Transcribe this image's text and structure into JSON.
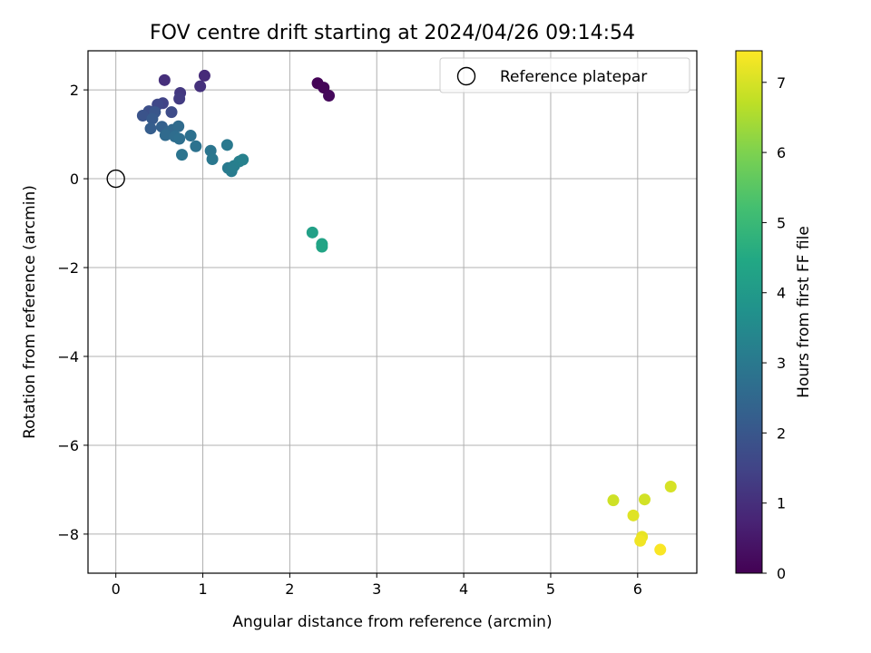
{
  "chart_data": {
    "type": "scatter",
    "title": "FOV centre drift starting at 2024/04/26 09:14:54",
    "xlabel": "Angular distance from reference (arcmin)",
    "ylabel": "Rotation from reference (arcmin)",
    "xlim": [
      -0.32,
      6.68
    ],
    "ylim": [
      -8.88,
      2.88
    ],
    "xticks": [
      0,
      1,
      2,
      3,
      4,
      5,
      6
    ],
    "yticks": [
      -8,
      -6,
      -4,
      -2,
      0,
      2
    ],
    "xtick_labels": [
      "0",
      "1",
      "2",
      "3",
      "4",
      "5",
      "6"
    ],
    "ytick_labels": [
      "−8",
      "−6",
      "−4",
      "−2",
      "0",
      "2"
    ],
    "grid": true,
    "legend": {
      "position": "top-right",
      "entries": [
        {
          "label": "Reference platepar",
          "marker": "open-circle"
        }
      ]
    },
    "reference_point": {
      "x": 0,
      "y": 0
    },
    "colorbar": {
      "label": "Hours from first FF file",
      "range": [
        0,
        7.45
      ],
      "ticks": [
        0,
        1,
        2,
        3,
        4,
        5,
        6,
        7
      ],
      "tick_labels": [
        "0",
        "1",
        "2",
        "3",
        "4",
        "5",
        "6",
        "7"
      ],
      "colormap": "viridis"
    },
    "points": [
      {
        "x": 2.32,
        "y": 2.15,
        "c": 0.05
      },
      {
        "x": 2.39,
        "y": 2.05,
        "c": 0.1
      },
      {
        "x": 2.45,
        "y": 1.87,
        "c": 0.15
      },
      {
        "x": 1.02,
        "y": 2.32,
        "c": 0.9
      },
      {
        "x": 0.56,
        "y": 2.22,
        "c": 1.0
      },
      {
        "x": 0.97,
        "y": 2.08,
        "c": 1.05
      },
      {
        "x": 0.74,
        "y": 1.93,
        "c": 1.2
      },
      {
        "x": 0.73,
        "y": 1.8,
        "c": 1.3
      },
      {
        "x": 0.54,
        "y": 1.7,
        "c": 1.5
      },
      {
        "x": 0.48,
        "y": 1.67,
        "c": 1.6
      },
      {
        "x": 0.64,
        "y": 1.5,
        "c": 1.7
      },
      {
        "x": 0.38,
        "y": 1.52,
        "c": 1.8
      },
      {
        "x": 0.31,
        "y": 1.42,
        "c": 1.9
      },
      {
        "x": 0.45,
        "y": 1.5,
        "c": 2.0
      },
      {
        "x": 0.42,
        "y": 1.35,
        "c": 2.1
      },
      {
        "x": 0.4,
        "y": 1.13,
        "c": 2.2
      },
      {
        "x": 0.53,
        "y": 1.17,
        "c": 2.3
      },
      {
        "x": 0.6,
        "y": 1.05,
        "c": 2.4
      },
      {
        "x": 0.65,
        "y": 1.1,
        "c": 2.5
      },
      {
        "x": 0.57,
        "y": 0.98,
        "c": 2.55
      },
      {
        "x": 0.72,
        "y": 1.18,
        "c": 2.6
      },
      {
        "x": 0.68,
        "y": 0.95,
        "c": 2.65
      },
      {
        "x": 0.73,
        "y": 0.9,
        "c": 2.7
      },
      {
        "x": 0.86,
        "y": 0.97,
        "c": 2.75
      },
      {
        "x": 0.92,
        "y": 0.73,
        "c": 2.8
      },
      {
        "x": 0.76,
        "y": 0.54,
        "c": 2.85
      },
      {
        "x": 1.09,
        "y": 0.63,
        "c": 2.9
      },
      {
        "x": 1.11,
        "y": 0.44,
        "c": 2.95
      },
      {
        "x": 1.28,
        "y": 0.76,
        "c": 3.0
      },
      {
        "x": 1.29,
        "y": 0.24,
        "c": 3.05
      },
      {
        "x": 1.33,
        "y": 0.17,
        "c": 3.1
      },
      {
        "x": 1.36,
        "y": 0.29,
        "c": 3.15
      },
      {
        "x": 1.42,
        "y": 0.39,
        "c": 3.2
      },
      {
        "x": 1.46,
        "y": 0.43,
        "c": 3.25
      },
      {
        "x": 2.26,
        "y": -1.21,
        "c": 4.2
      },
      {
        "x": 2.37,
        "y": -1.47,
        "c": 4.3
      },
      {
        "x": 2.37,
        "y": -1.53,
        "c": 4.35
      },
      {
        "x": 5.72,
        "y": -7.24,
        "c": 6.9
      },
      {
        "x": 6.08,
        "y": -7.22,
        "c": 6.95
      },
      {
        "x": 6.38,
        "y": -6.93,
        "c": 7.0
      },
      {
        "x": 5.95,
        "y": -7.58,
        "c": 7.1
      },
      {
        "x": 6.05,
        "y": -8.06,
        "c": 7.2
      },
      {
        "x": 6.03,
        "y": -8.15,
        "c": 7.3
      },
      {
        "x": 6.26,
        "y": -8.35,
        "c": 7.4
      }
    ]
  }
}
